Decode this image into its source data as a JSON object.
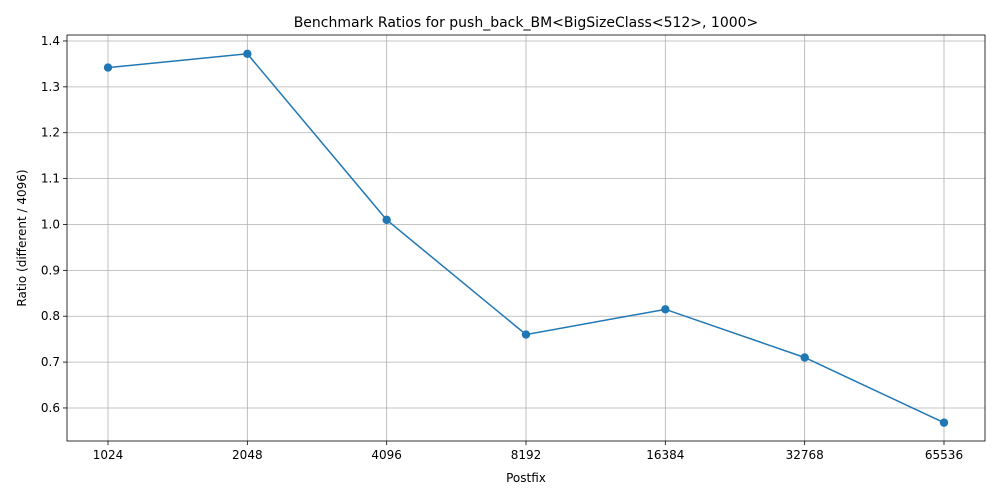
{
  "chart_data": {
    "type": "line",
    "title": "Benchmark Ratios for push_back_BM<BigSizeClass<512>, 1000>",
    "xlabel": "Postfix",
    "ylabel": "Ratio (different / 4096)",
    "categories": [
      "1024",
      "2048",
      "4096",
      "8192",
      "16384",
      "32768",
      "65536"
    ],
    "series": [
      {
        "values": [
          1.342,
          1.372,
          1.01,
          0.76,
          0.815,
          0.71,
          0.568
        ],
        "color": "#1f77b4",
        "marker": "circle"
      }
    ],
    "yticks": [
      "0.6",
      "0.7",
      "0.8",
      "0.9",
      "1.0",
      "1.1",
      "1.2",
      "1.3",
      "1.4"
    ],
    "ylim": [
      0.528,
      1.413
    ],
    "grid": true,
    "legend": "none"
  }
}
